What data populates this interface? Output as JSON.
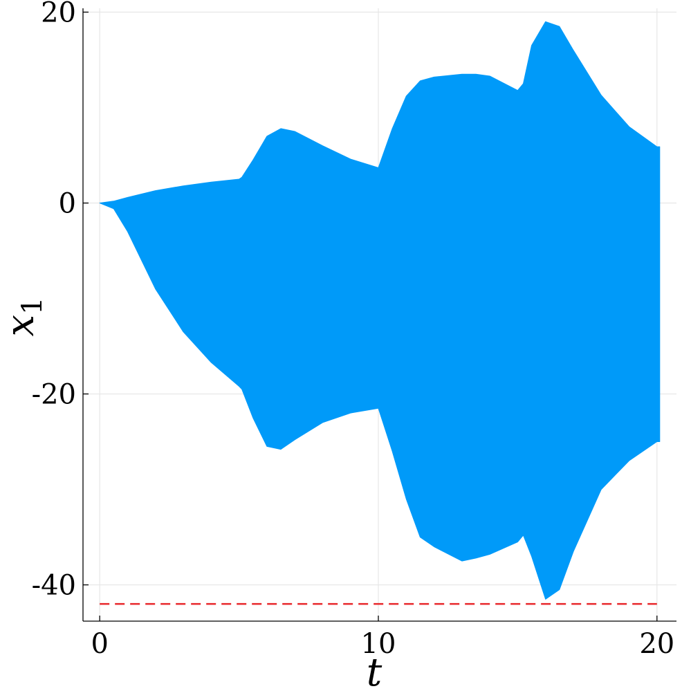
{
  "chart_data": {
    "type": "area",
    "title": "",
    "xlabel": "t",
    "ylabel": "x",
    "ylabel_subscript": "1",
    "xlim": [
      -0.6,
      20.7
    ],
    "ylim": [
      -43.8,
      20.4
    ],
    "x_ticks": [
      {
        "value": 0,
        "label": "0"
      },
      {
        "value": 10,
        "label": "10"
      },
      {
        "value": 20,
        "label": "20"
      }
    ],
    "y_ticks": [
      {
        "value": 20,
        "label": "20"
      },
      {
        "value": 0,
        "label": "0"
      },
      {
        "value": -20,
        "label": "-20"
      },
      {
        "value": -40,
        "label": "-40"
      }
    ],
    "grid": true,
    "legend": "none",
    "series": [
      {
        "color": "#009af9",
        "kind": "envelope",
        "x": [
          0,
          0.5,
          1,
          2,
          3,
          4,
          5,
          5.1,
          5.5,
          6,
          6.5,
          7,
          8,
          9,
          10,
          10.5,
          11,
          11.5,
          12,
          13,
          13.5,
          14,
          15,
          15.2,
          15.5,
          16,
          16.5,
          17,
          18,
          19,
          20,
          20.1
        ],
        "upper": [
          0,
          0.2,
          0.6,
          1.3,
          1.8,
          2.2,
          2.5,
          2.7,
          4.5,
          7.0,
          7.8,
          7.5,
          6.0,
          4.6,
          3.7,
          7.8,
          11.2,
          12.8,
          13.2,
          13.5,
          13.5,
          13.3,
          11.8,
          12.5,
          16.5,
          19.0,
          18.5,
          16.0,
          11.3,
          8.0,
          5.9,
          5.9
        ],
        "lower": [
          0,
          -0.6,
          -3.0,
          -9.0,
          -13.5,
          -16.7,
          -19.2,
          -19.5,
          -22.5,
          -25.5,
          -25.8,
          -24.8,
          -23.0,
          -22.0,
          -21.5,
          -26.0,
          -31.0,
          -35.0,
          -36.0,
          -37.5,
          -37.2,
          -36.8,
          -35.5,
          -34.8,
          -37.0,
          -41.5,
          -40.5,
          -36.5,
          -30.0,
          -27.0,
          -25.0,
          -25.0
        ]
      },
      {
        "color": "#e8282b",
        "kind": "hline",
        "style": "dashed",
        "y": -42,
        "x": [
          0,
          20
        ]
      }
    ]
  }
}
